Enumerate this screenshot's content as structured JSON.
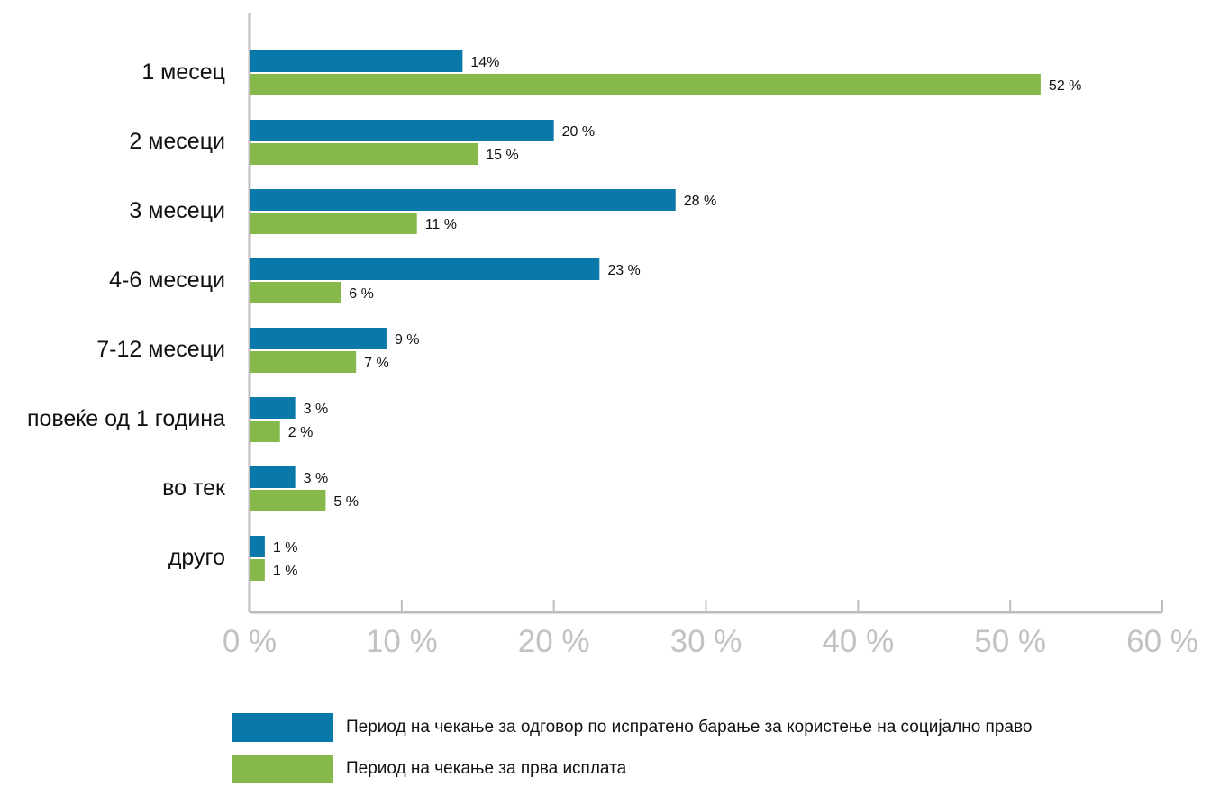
{
  "chart_data": {
    "type": "bar",
    "orientation": "horizontal",
    "categories": [
      "1 месец",
      "2 месеци",
      "3 месеци",
      "4-6 месеци",
      "7-12 месеци",
      "повеќе од 1 година",
      "во тек",
      "друго"
    ],
    "series": [
      {
        "name": "Период на чекање за одговор по испратено барање за користење на социјално право",
        "color": "#0a78a8",
        "values": [
          14,
          20,
          28,
          23,
          9,
          3,
          3,
          1
        ],
        "labels": [
          "14%",
          "20 %",
          "28 %",
          "23 %",
          "9 %",
          "3 %",
          "3 %",
          "1 %"
        ]
      },
      {
        "name": "Период на чекање за прва исплата",
        "color": "#86b94a",
        "values": [
          52,
          15,
          11,
          6,
          7,
          2,
          5,
          1
        ],
        "labels": [
          "52 %",
          "15 %",
          "11 %",
          "6 %",
          "7 %",
          "2 %",
          "5 %",
          "1 %"
        ]
      }
    ],
    "xlim": [
      0,
      60
    ],
    "xticks": [
      0,
      10,
      20,
      30,
      40,
      50,
      60
    ],
    "xtick_labels": [
      "0 %",
      "10 %",
      "20 %",
      "30 %",
      "40 %",
      "50 %",
      "60 %"
    ],
    "grid": false,
    "legend_position": "bottom"
  }
}
